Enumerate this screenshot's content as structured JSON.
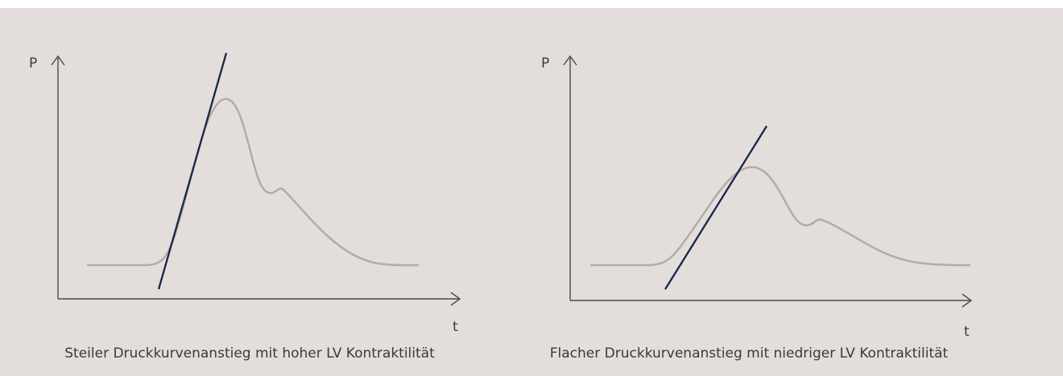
{
  "diagrams": [
    {
      "y_label": "P",
      "x_label": "t",
      "caption": "Steiler Druckkurvenanstieg mit hoher LV Kontraktilität"
    },
    {
      "y_label": "P",
      "x_label": "t",
      "caption": "Flacher Druckkurvenanstieg mit niedriger LV Kontraktilität"
    }
  ]
}
